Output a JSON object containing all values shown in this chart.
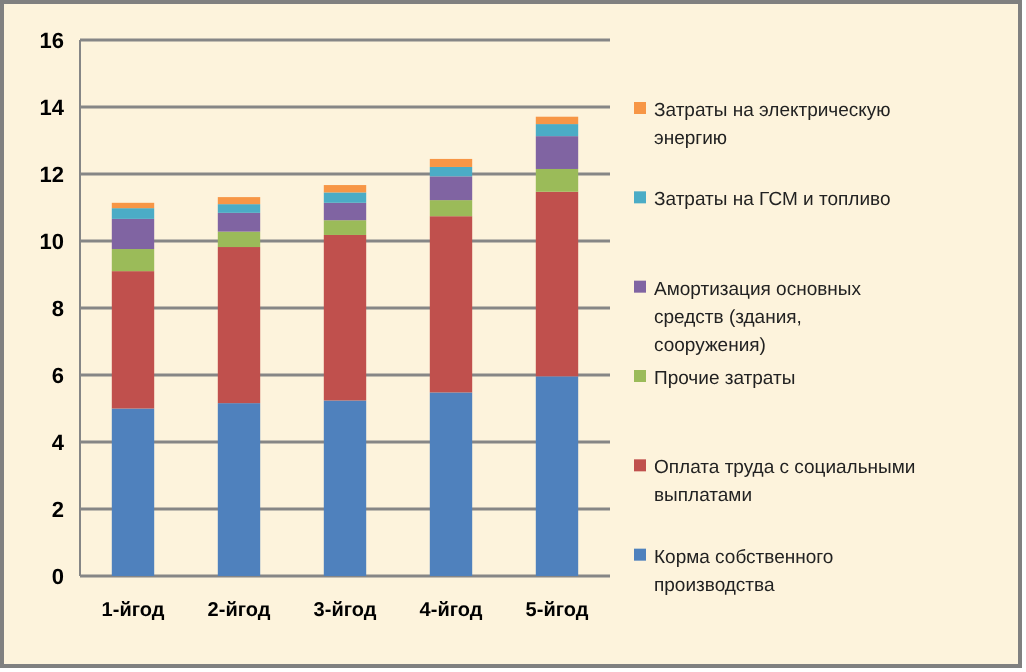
{
  "chart_data": {
    "type": "bar",
    "stacked": true,
    "categories": [
      "1-йгод",
      "2-йгод",
      "3-йгод",
      "4-йгод",
      "5-йгод"
    ],
    "series": [
      {
        "name": "Корма собственного производства",
        "color": "#4f81bd",
        "values": [
          5.0,
          5.16,
          5.24,
          5.48,
          5.96
        ]
      },
      {
        "name": "Оплата труда с социальными выплатами",
        "color": "#c0504d",
        "values": [
          4.1,
          4.66,
          4.94,
          5.26,
          5.51
        ]
      },
      {
        "name": "Прочие затраты",
        "color": "#9bbb59",
        "values": [
          0.66,
          0.46,
          0.44,
          0.48,
          0.68
        ]
      },
      {
        "name": "Амортизация основных средств (здания, сооружения)",
        "color": "#8064a2",
        "values": [
          0.9,
          0.56,
          0.52,
          0.71,
          0.98
        ]
      },
      {
        "name": "Затраты на ГСМ и топливо",
        "color": "#4bacc6",
        "values": [
          0.32,
          0.26,
          0.31,
          0.28,
          0.36
        ]
      },
      {
        "name": "Затраты на электрическую энергию",
        "color": "#f79646",
        "values": [
          0.16,
          0.21,
          0.22,
          0.24,
          0.22
        ]
      }
    ],
    "ylim": [
      0,
      16
    ],
    "yticks": [
      0,
      2,
      4,
      6,
      8,
      10,
      12,
      14,
      16
    ],
    "grid": "y",
    "legend": "right"
  }
}
